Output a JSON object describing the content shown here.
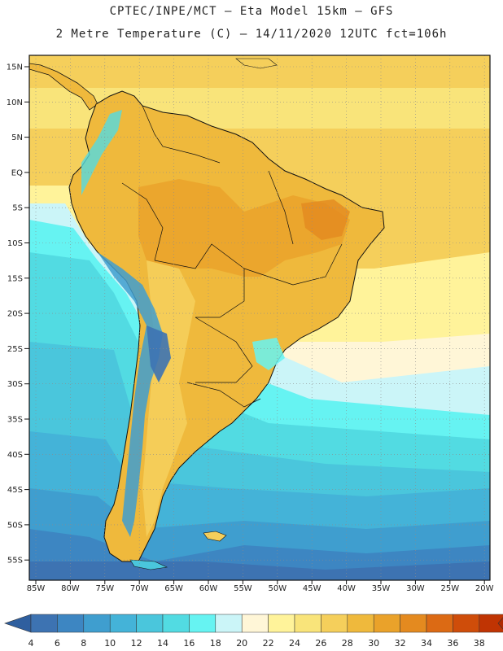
{
  "header": {
    "line1": "CPTEC/INPE/MCT –  Eta Model 15km – GFS",
    "line2": "2 Metre Temperature (C) – 14/11/2020 12UTC fct=106h"
  },
  "map": {
    "lat_labels": [
      "15N",
      "10N",
      "5N",
      "EQ",
      "5S",
      "10S",
      "15S",
      "20S",
      "25S",
      "30S",
      "35S",
      "40S",
      "45S",
      "50S",
      "55S"
    ],
    "lon_labels": [
      "85W",
      "80W",
      "75W",
      "70W",
      "65W",
      "60W",
      "55W",
      "50W",
      "45W",
      "40W",
      "35W",
      "30W",
      "25W",
      "20W"
    ]
  },
  "colorbar": {
    "ticks": [
      "4",
      "6",
      "8",
      "10",
      "12",
      "14",
      "16",
      "18",
      "20",
      "22",
      "24",
      "26",
      "28",
      "30",
      "32",
      "34",
      "36",
      "38"
    ],
    "colors": [
      "#3d73b2",
      "#3d86c2",
      "#3f9ecf",
      "#44b3d8",
      "#4ac6dc",
      "#52dbe2",
      "#66f3f2",
      "#cbf5f8",
      "#fff6d7",
      "#fff39a",
      "#f9e47a",
      "#f5cf5b",
      "#efb93c",
      "#eaa22a",
      "#e48a1f",
      "#dc6a14",
      "#cf4d0a",
      "#c03403"
    ],
    "low_color": "#2f5f9f",
    "high_color": "#b02a02"
  }
}
